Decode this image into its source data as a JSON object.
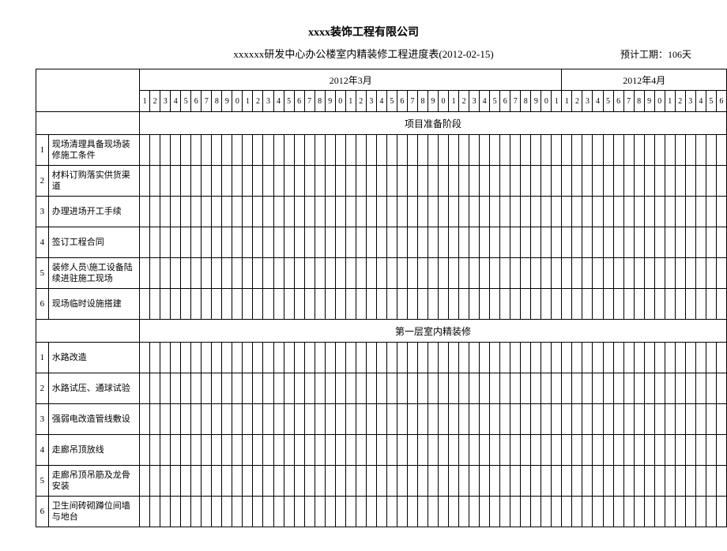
{
  "header": {
    "company": "xxxx装饰工程有限公司",
    "project": "xxxxxx研发中心办公楼室内精装修工程进度表(2012-02-15)",
    "duration_label": "预计工期：106天"
  },
  "months": [
    {
      "label": "2012年3月",
      "days": 41
    },
    {
      "label": "2012年4月",
      "days": 16
    }
  ],
  "day_sequence": [
    "1",
    "2",
    "3",
    "4",
    "5",
    "6",
    "7",
    "8",
    "9",
    "0",
    "1",
    "2",
    "3",
    "4",
    "5",
    "6",
    "7",
    "8",
    "9",
    "0",
    "1",
    "2",
    "3",
    "4",
    "5",
    "6",
    "7",
    "8",
    "9",
    "0",
    "1",
    "2",
    "3",
    "4",
    "5",
    "6",
    "7",
    "8",
    "9",
    "0",
    "1",
    "1",
    "2",
    "3",
    "4",
    "5",
    "6",
    "7",
    "8",
    "9",
    "0",
    "1",
    "2",
    "3",
    "4",
    "5",
    "6"
  ],
  "sections": [
    {
      "title": "项目准备阶段",
      "tasks": [
        {
          "idx": "1",
          "name": "现场清理具备现场装修施工条件"
        },
        {
          "idx": "2",
          "name": "材料订购落实供货渠道"
        },
        {
          "idx": "3",
          "name": "办理进场开工手续"
        },
        {
          "idx": "4",
          "name": "签订工程合同"
        },
        {
          "idx": "5",
          "name": "装修人员\\施工设备陆续进驻施工现场"
        },
        {
          "idx": "6",
          "name": "现场临时设施搭建"
        }
      ]
    },
    {
      "title": "第一层室内精装修",
      "tasks": [
        {
          "idx": "1",
          "name": "水路改造"
        },
        {
          "idx": "2",
          "name": "水路试压、通球试验"
        },
        {
          "idx": "3",
          "name": "强弱电改造管线敷设"
        },
        {
          "idx": "4",
          "name": "走廊吊顶放线"
        },
        {
          "idx": "5",
          "name": "走廊吊顶吊筋及龙骨安装"
        },
        {
          "idx": "6",
          "name": "卫生间砖砌蹲位间墙与地台"
        }
      ]
    }
  ],
  "style": {
    "border_color": "#000000",
    "background": "#ffffff",
    "font": "SimSun"
  }
}
